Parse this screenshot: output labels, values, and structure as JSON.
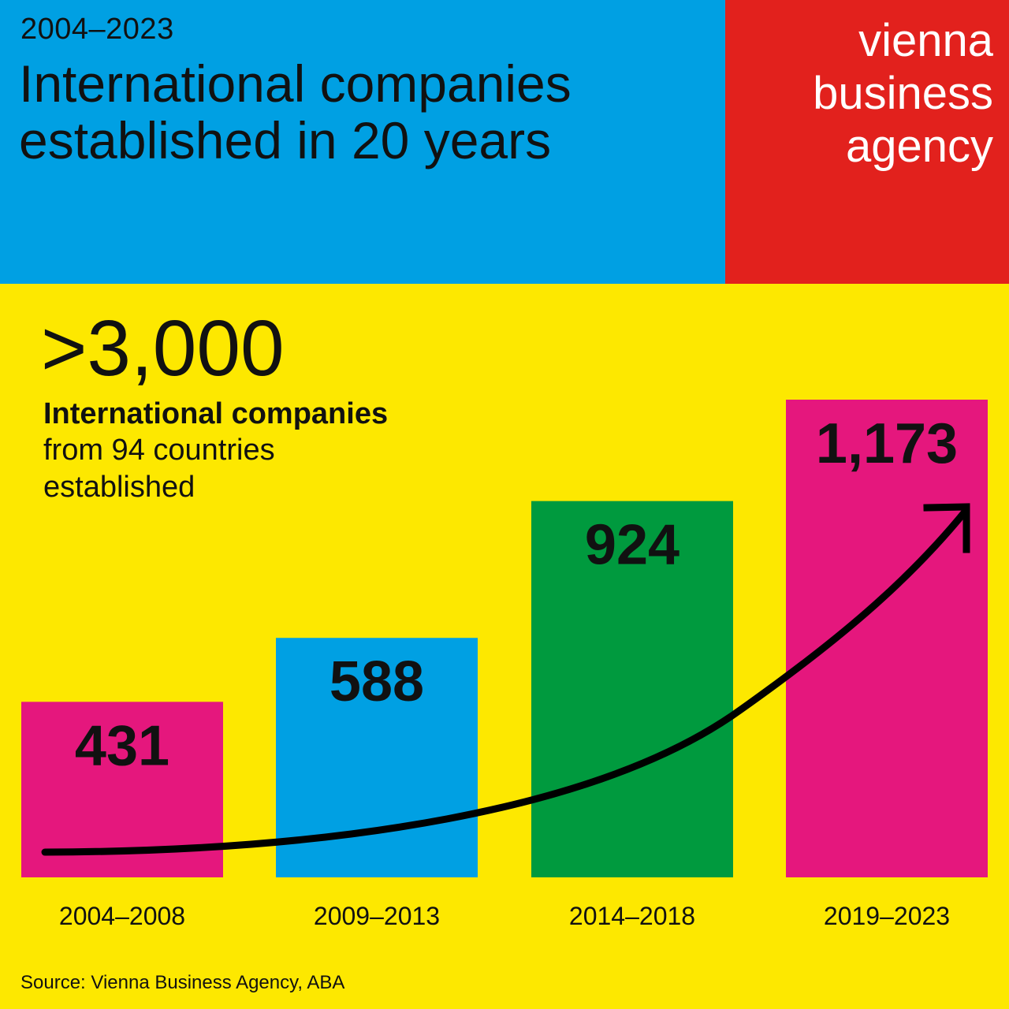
{
  "header": {
    "period": "2004–2023",
    "title_line1": "International companies",
    "title_line2": "established in 20 years"
  },
  "logo": {
    "line1": "vienna",
    "line2": "business",
    "line3": "agency"
  },
  "headline": {
    "big_number": ">3,000",
    "bold_line": "International companies",
    "line2": "from 94 countries",
    "line3": "established"
  },
  "chart_data": {
    "type": "bar",
    "categories": [
      "2004–2008",
      "2009–2013",
      "2014–2018",
      "2019–2023"
    ],
    "values": [
      431,
      588,
      924,
      1173
    ],
    "value_labels": [
      "431",
      "588",
      "924",
      "1,173"
    ],
    "bar_colors": [
      "#e5177d",
      "#00a0e3",
      "#009a3e",
      "#e5177d"
    ],
    "grid": false,
    "trend_arrow": true
  },
  "source": "Source: Vienna Business Agency, ABA",
  "colors": {
    "blue": "#00a0e3",
    "red": "#e2211d",
    "yellow": "#fde800",
    "magenta": "#e5177d",
    "green": "#009a3e"
  }
}
